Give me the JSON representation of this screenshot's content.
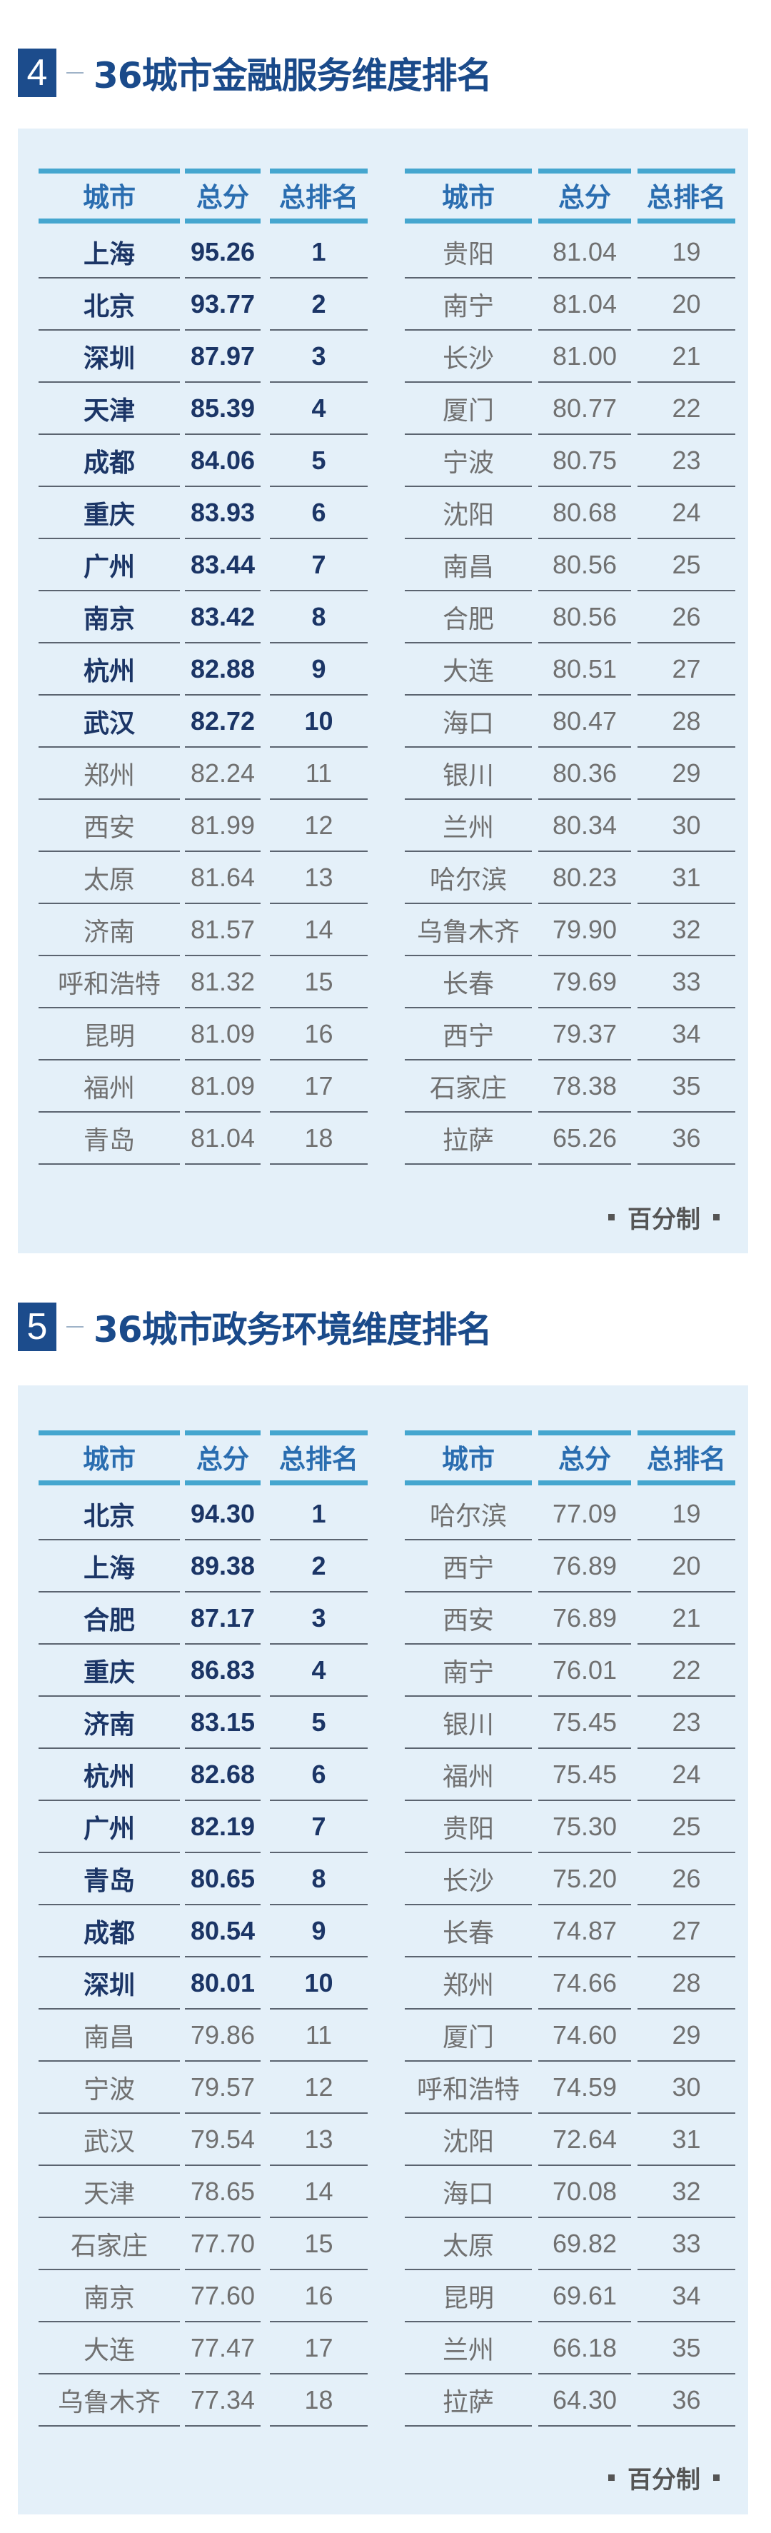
{
  "colors": {
    "accent": "#1c4c8c",
    "header_line": "#45a6cf",
    "panel_bg": "#e4f0f9",
    "top10_text": "#1b3566",
    "other_text": "#707070"
  },
  "sections": [
    {
      "number": "4",
      "title": "36城市金融服务维度排名",
      "headers": [
        "城市",
        "总分",
        "总排名"
      ],
      "unit_note": "百分制",
      "rows": [
        [
          "上海",
          "95.26",
          "1"
        ],
        [
          "北京",
          "93.77",
          "2"
        ],
        [
          "深圳",
          "87.97",
          "3"
        ],
        [
          "天津",
          "85.39",
          "4"
        ],
        [
          "成都",
          "84.06",
          "5"
        ],
        [
          "重庆",
          "83.93",
          "6"
        ],
        [
          "广州",
          "83.44",
          "7"
        ],
        [
          "南京",
          "83.42",
          "8"
        ],
        [
          "杭州",
          "82.88",
          "9"
        ],
        [
          "武汉",
          "82.72",
          "10"
        ],
        [
          "郑州",
          "82.24",
          "11"
        ],
        [
          "西安",
          "81.99",
          "12"
        ],
        [
          "太原",
          "81.64",
          "13"
        ],
        [
          "济南",
          "81.57",
          "14"
        ],
        [
          "呼和浩特",
          "81.32",
          "15"
        ],
        [
          "昆明",
          "81.09",
          "16"
        ],
        [
          "福州",
          "81.09",
          "17"
        ],
        [
          "青岛",
          "81.04",
          "18"
        ],
        [
          "贵阳",
          "81.04",
          "19"
        ],
        [
          "南宁",
          "81.04",
          "20"
        ],
        [
          "长沙",
          "81.00",
          "21"
        ],
        [
          "厦门",
          "80.77",
          "22"
        ],
        [
          "宁波",
          "80.75",
          "23"
        ],
        [
          "沈阳",
          "80.68",
          "24"
        ],
        [
          "南昌",
          "80.56",
          "25"
        ],
        [
          "合肥",
          "80.56",
          "26"
        ],
        [
          "大连",
          "80.51",
          "27"
        ],
        [
          "海口",
          "80.47",
          "28"
        ],
        [
          "银川",
          "80.36",
          "29"
        ],
        [
          "兰州",
          "80.34",
          "30"
        ],
        [
          "哈尔滨",
          "80.23",
          "31"
        ],
        [
          "乌鲁木齐",
          "79.90",
          "32"
        ],
        [
          "长春",
          "79.69",
          "33"
        ],
        [
          "西宁",
          "79.37",
          "34"
        ],
        [
          "石家庄",
          "78.38",
          "35"
        ],
        [
          "拉萨",
          "65.26",
          "36"
        ]
      ]
    },
    {
      "number": "5",
      "title": "36城市政务环境维度排名",
      "headers": [
        "城市",
        "总分",
        "总排名"
      ],
      "unit_note": "百分制",
      "rows": [
        [
          "北京",
          "94.30",
          "1"
        ],
        [
          "上海",
          "89.38",
          "2"
        ],
        [
          "合肥",
          "87.17",
          "3"
        ],
        [
          "重庆",
          "86.83",
          "4"
        ],
        [
          "济南",
          "83.15",
          "5"
        ],
        [
          "杭州",
          "82.68",
          "6"
        ],
        [
          "广州",
          "82.19",
          "7"
        ],
        [
          "青岛",
          "80.65",
          "8"
        ],
        [
          "成都",
          "80.54",
          "9"
        ],
        [
          "深圳",
          "80.01",
          "10"
        ],
        [
          "南昌",
          "79.86",
          "11"
        ],
        [
          "宁波",
          "79.57",
          "12"
        ],
        [
          "武汉",
          "79.54",
          "13"
        ],
        [
          "天津",
          "78.65",
          "14"
        ],
        [
          "石家庄",
          "77.70",
          "15"
        ],
        [
          "南京",
          "77.60",
          "16"
        ],
        [
          "大连",
          "77.47",
          "17"
        ],
        [
          "乌鲁木齐",
          "77.34",
          "18"
        ],
        [
          "哈尔滨",
          "77.09",
          "19"
        ],
        [
          "西宁",
          "76.89",
          "20"
        ],
        [
          "西安",
          "76.89",
          "21"
        ],
        [
          "南宁",
          "76.01",
          "22"
        ],
        [
          "银川",
          "75.45",
          "23"
        ],
        [
          "福州",
          "75.45",
          "24"
        ],
        [
          "贵阳",
          "75.30",
          "25"
        ],
        [
          "长沙",
          "75.20",
          "26"
        ],
        [
          "长春",
          "74.87",
          "27"
        ],
        [
          "郑州",
          "74.66",
          "28"
        ],
        [
          "厦门",
          "74.60",
          "29"
        ],
        [
          "呼和浩特",
          "74.59",
          "30"
        ],
        [
          "沈阳",
          "72.64",
          "31"
        ],
        [
          "海口",
          "70.08",
          "32"
        ],
        [
          "太原",
          "69.82",
          "33"
        ],
        [
          "昆明",
          "69.61",
          "34"
        ],
        [
          "兰州",
          "66.18",
          "35"
        ],
        [
          "拉萨",
          "64.30",
          "36"
        ]
      ]
    }
  ]
}
